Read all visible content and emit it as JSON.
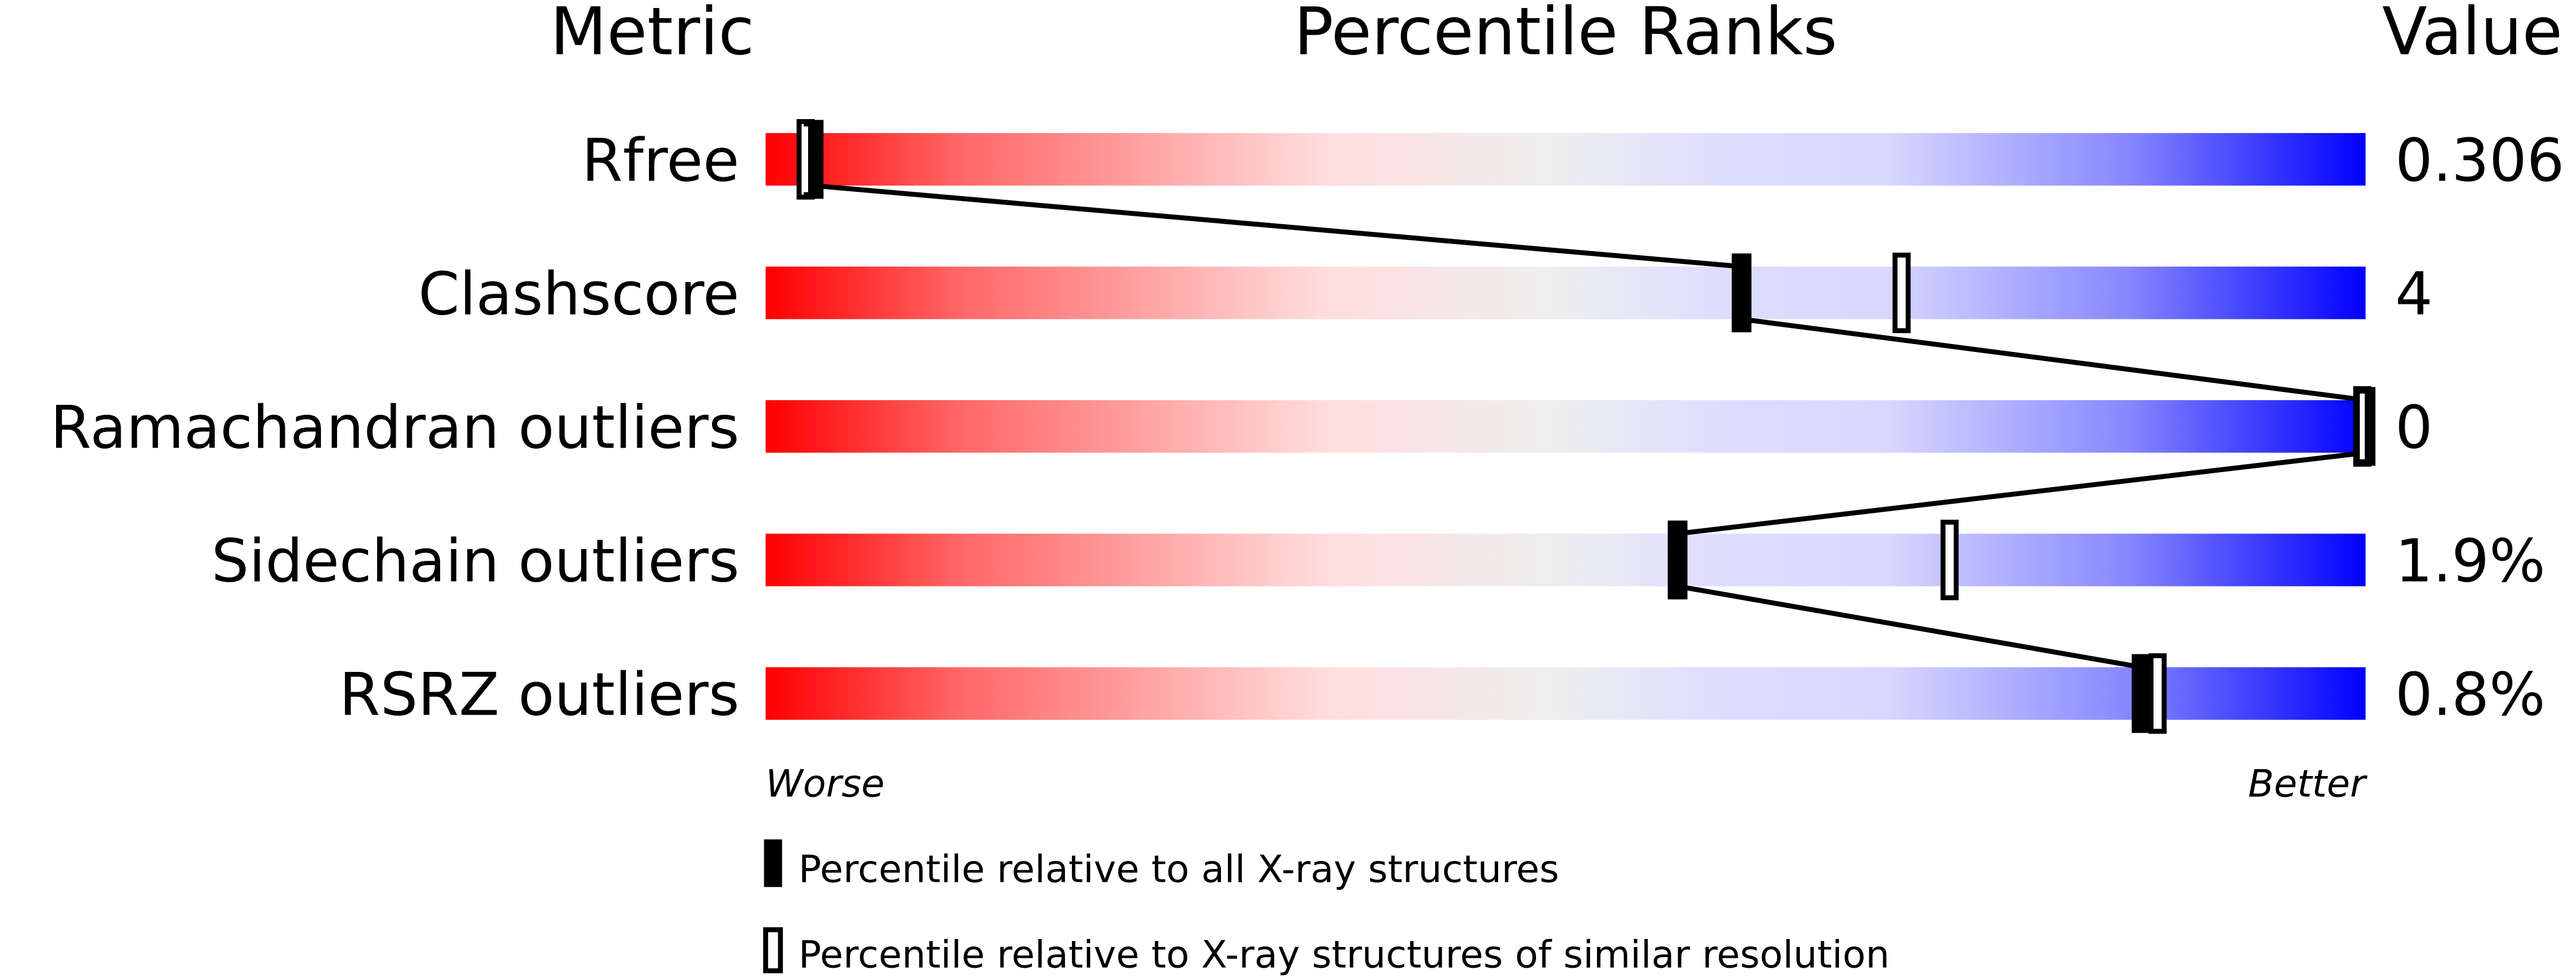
{
  "chart_data": {
    "type": "percentile-bar",
    "headers": {
      "metric": "Metric",
      "ranks": "Percentile Ranks",
      "value": "Value"
    },
    "xlim": [
      0,
      100
    ],
    "axis_labels": {
      "left": "Worse",
      "right": "Better"
    },
    "rows": [
      {
        "metric": "Rfree",
        "value": "0.306",
        "percentile_all": 3,
        "percentile_similar": 2.5
      },
      {
        "metric": "Clashscore",
        "value": "4",
        "percentile_all": 61,
        "percentile_similar": 71
      },
      {
        "metric": "Ramachandran outliers",
        "value": "0",
        "percentile_all": 100,
        "percentile_similar": 100
      },
      {
        "metric": "Sidechain outliers",
        "value": "1.9%",
        "percentile_all": 57,
        "percentile_similar": 74
      },
      {
        "metric": "RSRZ outliers",
        "value": "0.8%",
        "percentile_all": 86,
        "percentile_similar": 87
      }
    ],
    "legend": [
      {
        "marker": "filled",
        "label": "Percentile relative to all X-ray structures"
      },
      {
        "marker": "open",
        "label": "Percentile relative to X-ray structures of similar resolution"
      }
    ],
    "colors": {
      "worse": "#ff0000",
      "neutral": "#eeeeee",
      "better": "#0000ff",
      "marker": "#000000"
    }
  }
}
